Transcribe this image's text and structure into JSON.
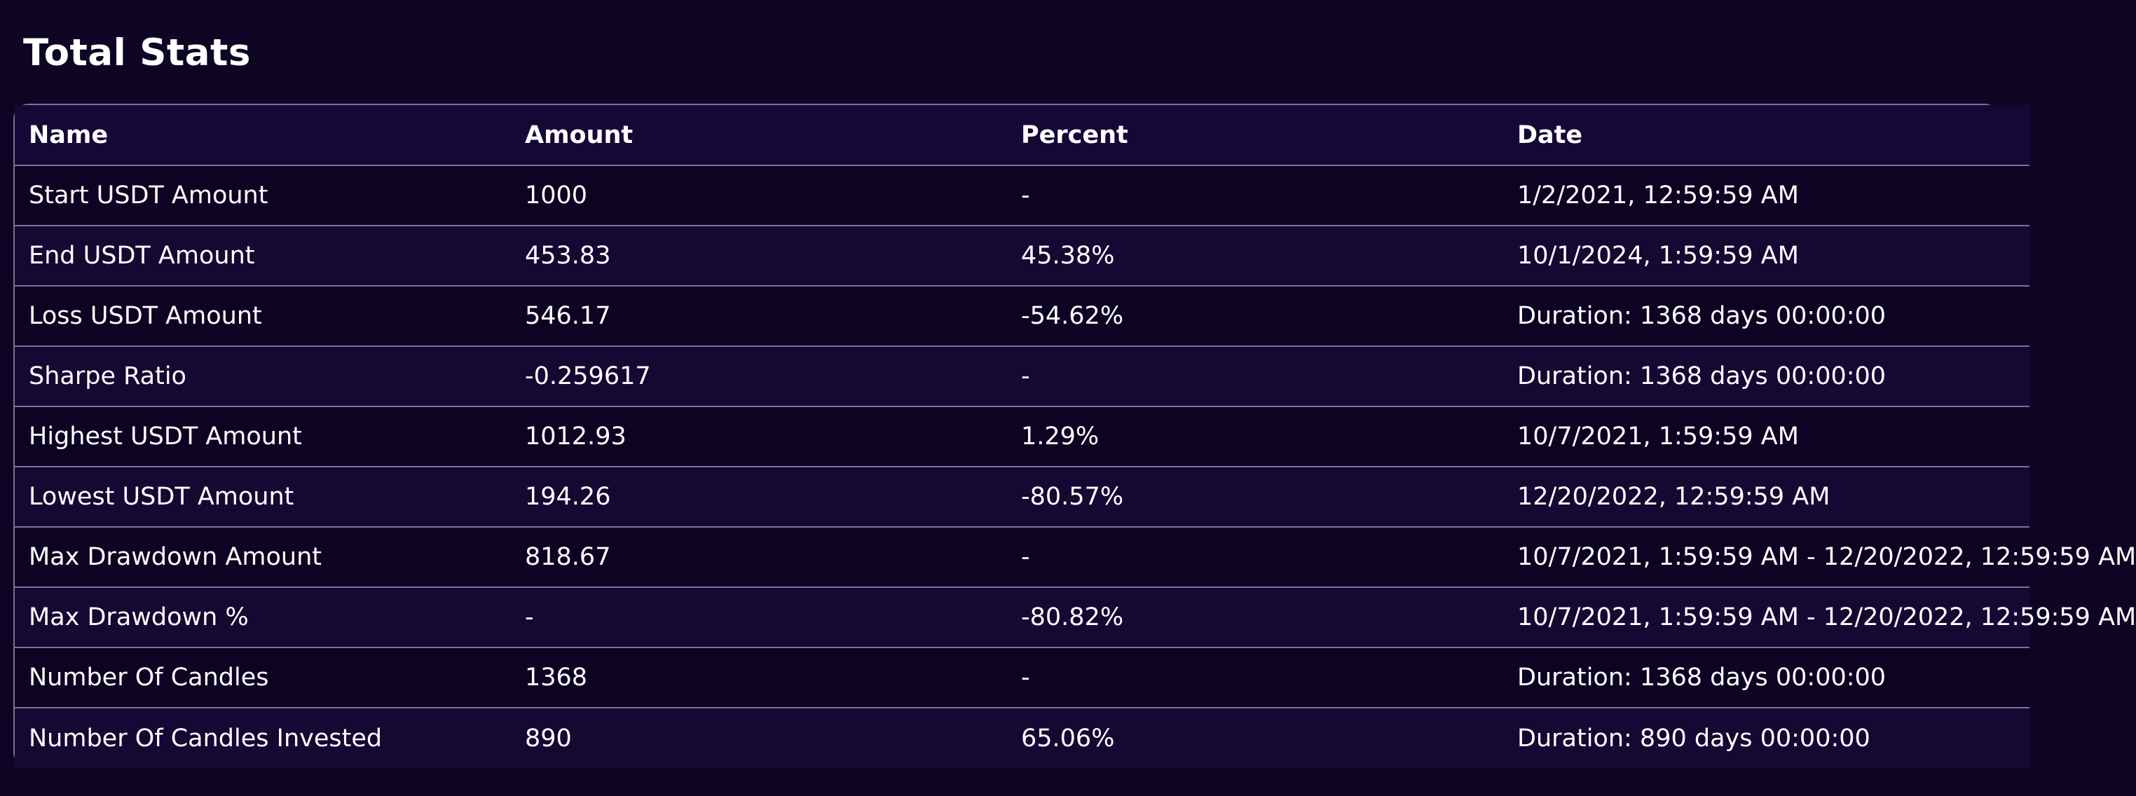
{
  "title": "Total Stats",
  "table": {
    "headers": [
      "Name",
      "Amount",
      "Percent",
      "Date"
    ],
    "rows": [
      [
        "Start USDT Amount",
        "1000",
        "-",
        "1/2/2021, 12:59:59 AM"
      ],
      [
        "End USDT Amount",
        "453.83",
        "45.38%",
        "10/1/2024, 1:59:59 AM"
      ],
      [
        "Loss USDT Amount",
        "546.17",
        "-54.62%",
        "Duration: 1368 days 00:00:00"
      ],
      [
        "Sharpe Ratio",
        "-0.259617",
        "-",
        "Duration: 1368 days 00:00:00"
      ],
      [
        "Highest USDT Amount",
        "1012.93",
        "1.29%",
        "10/7/2021, 1:59:59 AM"
      ],
      [
        "Lowest USDT Amount",
        "194.26",
        "-80.57%",
        "12/20/2022, 12:59:59 AM"
      ],
      [
        "Max Drawdown Amount",
        "818.67",
        "-",
        "10/7/2021, 1:59:59 AM - 12/20/2022, 12:59:59 AM"
      ],
      [
        "Max Drawdown %",
        "-",
        "-80.82%",
        "10/7/2021, 1:59:59 AM - 12/20/2022, 12:59:59 AM"
      ],
      [
        "Number Of Candles",
        "1368",
        "-",
        "Duration: 1368 days 00:00:00"
      ],
      [
        "Number Of Candles Invested",
        "890",
        "65.06%",
        "Duration: 890 days 00:00:00"
      ]
    ]
  },
  "colors": {
    "background": "#0e0424",
    "header_row": "#150837",
    "row_odd": "#0d0322",
    "row_even": "#150833",
    "border": "#7b7494",
    "text": "#ffffff"
  }
}
